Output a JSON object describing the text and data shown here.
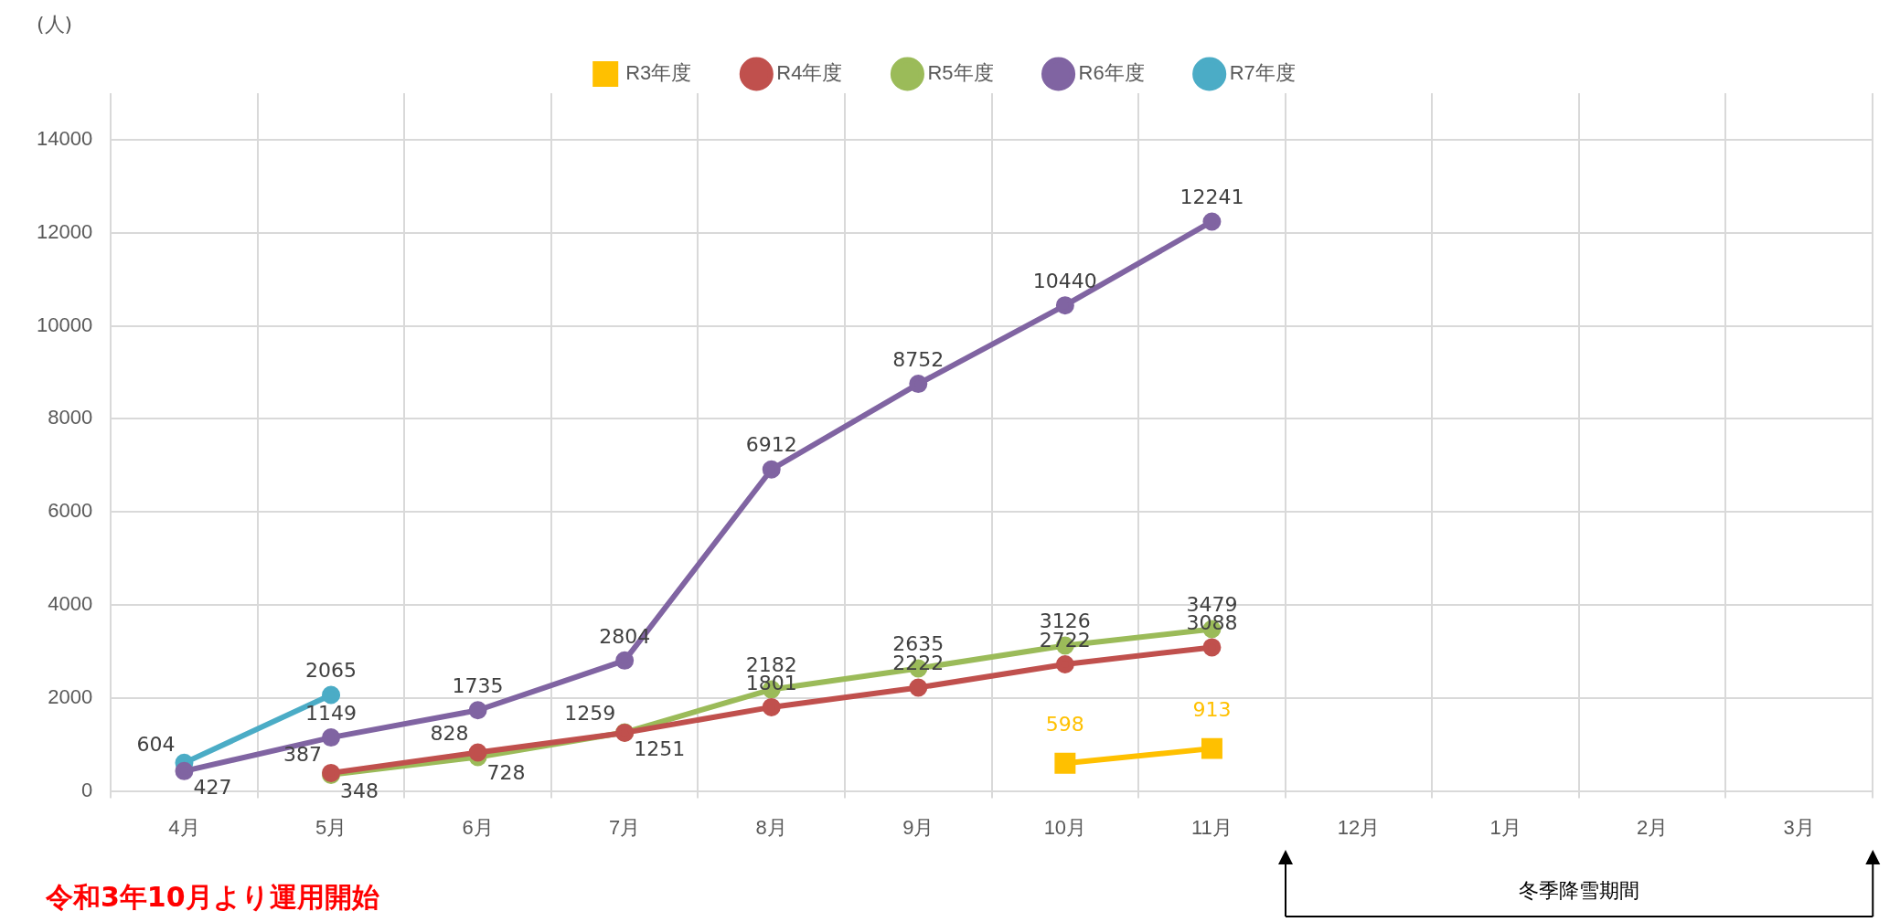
{
  "chart_data": {
    "type": "line",
    "categories": [
      "4月",
      "5月",
      "6月",
      "7月",
      "8月",
      "9月",
      "10月",
      "11月",
      "12月",
      "1月",
      "2月",
      "3月"
    ],
    "series": [
      {
        "name": "R3年度",
        "color": "#ffc000",
        "marker": "square",
        "values": [
          null,
          null,
          null,
          null,
          null,
          null,
          598,
          913,
          null,
          null,
          null,
          null
        ],
        "value_labels": [
          null,
          null,
          null,
          null,
          null,
          null,
          "598",
          "913",
          null,
          null,
          null,
          null
        ]
      },
      {
        "name": "R4年度",
        "color": "#c0504d",
        "values": [
          null,
          387,
          828,
          1251,
          1801,
          2222,
          2722,
          3088,
          null,
          null,
          null,
          null
        ]
      },
      {
        "name": "R5年度",
        "color": "#9bbb59",
        "values": [
          null,
          348,
          728,
          1259,
          2182,
          2635,
          3126,
          3479,
          null,
          null,
          null,
          null
        ]
      },
      {
        "name": "R6年度",
        "color": "#8064a2",
        "values": [
          427,
          1149,
          1735,
          2804,
          6912,
          8752,
          10440,
          12241,
          null,
          null,
          null,
          null
        ]
      },
      {
        "name": "R7年度",
        "color": "#4bacc6",
        "values": [
          604,
          2065,
          null,
          null,
          null,
          null,
          null,
          null,
          null,
          null,
          null,
          null
        ]
      }
    ],
    "ylim": [
      0,
      15000
    ],
    "yticks": [
      0,
      2000,
      4000,
      6000,
      8000,
      10000,
      12000,
      14000
    ],
    "grid": true,
    "legend": "top",
    "marker": "circle",
    "line_style": "solid",
    "data_labels": true,
    "annotations": [
      "(人)",
      "冬季降雪期間",
      "令和3年10月より運用開始"
    ]
  }
}
